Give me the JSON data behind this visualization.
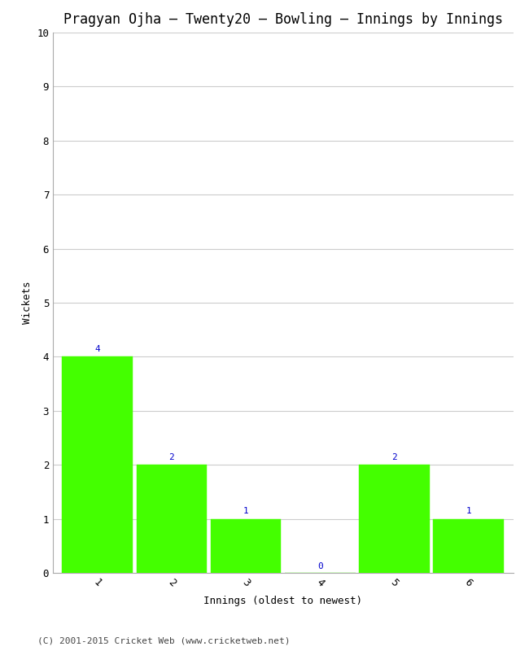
{
  "title": "Pragyan Ojha – Twenty20 – Bowling – Innings by Innings",
  "xlabel": "Innings (oldest to newest)",
  "ylabel": "Wickets",
  "categories": [
    1,
    2,
    3,
    4,
    5,
    6
  ],
  "values": [
    4,
    2,
    1,
    0,
    2,
    1
  ],
  "bar_color": "#44ff00",
  "bar_edge_color": "#44ff00",
  "label_color": "#0000cc",
  "ylim": [
    0,
    10
  ],
  "yticks": [
    0,
    1,
    2,
    3,
    4,
    5,
    6,
    7,
    8,
    9,
    10
  ],
  "xticks": [
    1,
    2,
    3,
    4,
    5,
    6
  ],
  "grid_color": "#cccccc",
  "bg_color": "#ffffff",
  "title_fontsize": 12,
  "axis_label_fontsize": 9,
  "tick_fontsize": 9,
  "value_label_fontsize": 8,
  "footer": "(C) 2001-2015 Cricket Web (www.cricketweb.net)",
  "footer_fontsize": 8,
  "bar_width": 0.95,
  "xlim": [
    0.4,
    6.6
  ]
}
